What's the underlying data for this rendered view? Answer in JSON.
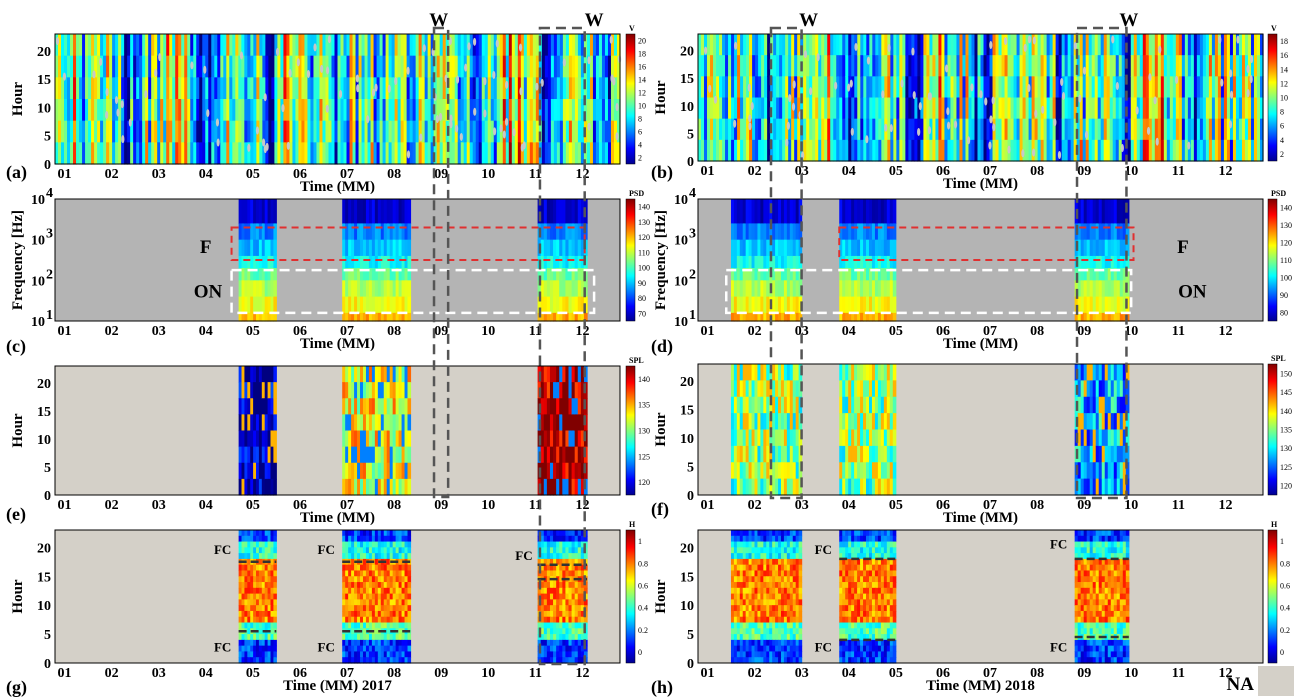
{
  "chart_data": [
    {
      "panel": "(a)",
      "type": "heatmap",
      "ylabel": "Hour",
      "xlabel": "Time (MM)",
      "x_ticks": [
        "01",
        "02",
        "03",
        "04",
        "05",
        "06",
        "07",
        "08",
        "09",
        "10",
        "11",
        "12"
      ],
      "y_ticks": [
        "0",
        "5",
        "10",
        "15",
        "20"
      ],
      "ylim": [
        0,
        23
      ],
      "colorbar": {
        "title": "V",
        "ticks": [
          "2",
          "4",
          "6",
          "8",
          "10",
          "12",
          "14",
          "16",
          "18",
          "20"
        ]
      },
      "coverage": [
        {
          "from": 0.0,
          "to": 12.0,
          "level": 0.45
        }
      ],
      "annotations": [
        {
          "text": "W",
          "month": 8.15
        },
        {
          "text": "W",
          "month": 11.45
        }
      ]
    },
    {
      "panel": "(b)",
      "type": "heatmap",
      "ylabel": "Hour",
      "xlabel": "Time (MM)",
      "x_ticks": [
        "01",
        "02",
        "03",
        "04",
        "05",
        "06",
        "07",
        "08",
        "09",
        "10",
        "11",
        "12"
      ],
      "y_ticks": [
        "0",
        "5",
        "10",
        "15",
        "20"
      ],
      "ylim": [
        0,
        23
      ],
      "colorbar": {
        "title": "V",
        "ticks": [
          "2",
          "4",
          "6",
          "8",
          "10",
          "12",
          "14",
          "16",
          "18"
        ]
      },
      "coverage": [
        {
          "from": 0.0,
          "to": 12.0,
          "level": 0.45
        }
      ],
      "annotations": [
        {
          "text": "W",
          "month": 2.35
        },
        {
          "text": "W",
          "month": 9.15
        }
      ]
    },
    {
      "panel": "(c)",
      "type": "heatmap",
      "ylabel": "Frequency [Hz]",
      "xlabel": "Time (MM)",
      "x_ticks": [
        "01",
        "02",
        "03",
        "04",
        "05",
        "06",
        "07",
        "08",
        "09",
        "10",
        "11",
        "12"
      ],
      "y_scale": "log",
      "y_ticks": [
        "10^1",
        "10^2",
        "10^3",
        "10^4"
      ],
      "colorbar": {
        "title": "PSD",
        "ticks": [
          "70",
          "80",
          "90",
          "100",
          "110",
          "120",
          "130",
          "140"
        ]
      },
      "coverage": [
        {
          "from": 3.9,
          "to": 4.7
        },
        {
          "from": 6.1,
          "to": 7.55
        },
        {
          "from": 10.25,
          "to": 11.3
        }
      ],
      "annotations": [
        {
          "text": "F"
        },
        {
          "text": "ON"
        }
      ]
    },
    {
      "panel": "(d)",
      "type": "heatmap",
      "ylabel": "Frequency [Hz]",
      "xlabel": "Time (MM)",
      "x_ticks": [
        "01",
        "02",
        "03",
        "04",
        "05",
        "06",
        "07",
        "08",
        "09",
        "10",
        "11",
        "12"
      ],
      "y_scale": "log",
      "y_ticks": [
        "10^1",
        "10^2",
        "10^3",
        "10^4"
      ],
      "colorbar": {
        "title": "PSD",
        "ticks": [
          "80",
          "90",
          "100",
          "110",
          "120",
          "130",
          "140"
        ]
      },
      "coverage": [
        {
          "from": 0.7,
          "to": 2.2
        },
        {
          "from": 3.0,
          "to": 4.2
        },
        {
          "from": 8.0,
          "to": 9.15
        }
      ],
      "annotations": [
        {
          "text": "F"
        },
        {
          "text": "ON"
        }
      ]
    },
    {
      "panel": "(e)",
      "type": "heatmap",
      "ylabel": "Hour",
      "xlabel": "Time (MM)",
      "x_ticks": [
        "01",
        "02",
        "03",
        "04",
        "05",
        "06",
        "07",
        "08",
        "09",
        "10",
        "11",
        "12"
      ],
      "y_ticks": [
        "0",
        "5",
        "10",
        "15",
        "20"
      ],
      "ylim": [
        0,
        23
      ],
      "colorbar": {
        "title": "SPL",
        "ticks": [
          "120",
          "125",
          "130",
          "135",
          "140"
        ]
      },
      "coverage": [
        {
          "from": 3.9,
          "to": 4.7,
          "level": 0.03
        },
        {
          "from": 6.1,
          "to": 7.55,
          "level": 0.62
        },
        {
          "from": 10.25,
          "to": 11.3,
          "level": 0.97
        }
      ]
    },
    {
      "panel": "(f)",
      "type": "heatmap",
      "ylabel": "Hour",
      "xlabel": "Time (MM)",
      "x_ticks": [
        "01",
        "02",
        "03",
        "04",
        "05",
        "06",
        "07",
        "08",
        "09",
        "10",
        "11",
        "12"
      ],
      "y_ticks": [
        "0",
        "5",
        "10",
        "15",
        "20"
      ],
      "ylim": [
        0,
        23
      ],
      "colorbar": {
        "title": "SPL",
        "ticks": [
          "120",
          "125",
          "130",
          "135",
          "140",
          "145",
          "150"
        ]
      },
      "coverage": [
        {
          "from": 0.7,
          "to": 2.2,
          "level": 0.5
        },
        {
          "from": 3.0,
          "to": 4.2,
          "level": 0.5
        },
        {
          "from": 8.0,
          "to": 9.15,
          "level": 0.3
        }
      ]
    },
    {
      "panel": "(g)",
      "type": "heatmap",
      "ylabel": "Hour",
      "xlabel": "Time (MM) 2017",
      "x_ticks": [
        "01",
        "02",
        "03",
        "04",
        "05",
        "06",
        "07",
        "08",
        "09",
        "10",
        "11",
        "12"
      ],
      "y_ticks": [
        "0",
        "5",
        "10",
        "15",
        "20"
      ],
      "ylim": [
        0,
        23
      ],
      "colorbar": {
        "title": "H",
        "ticks": [
          "0",
          "0.2",
          "0.4",
          "0.6",
          "0.8",
          "1"
        ]
      },
      "coverage": [
        {
          "from": 3.9,
          "to": 4.7
        },
        {
          "from": 6.1,
          "to": 7.55
        },
        {
          "from": 10.25,
          "to": 11.3
        }
      ],
      "annotations": [
        {
          "text": "FC"
        },
        {
          "text": "FC"
        },
        {
          "text": "FC"
        },
        {
          "text": "FC"
        },
        {
          "text": "FC"
        }
      ]
    },
    {
      "panel": "(h)",
      "type": "heatmap",
      "ylabel": "Hour",
      "xlabel": "Time (MM) 2018",
      "x_ticks": [
        "01",
        "02",
        "03",
        "04",
        "05",
        "06",
        "07",
        "08",
        "09",
        "10",
        "11",
        "12"
      ],
      "y_ticks": [
        "0",
        "5",
        "10",
        "15",
        "20"
      ],
      "ylim": [
        0,
        23
      ],
      "colorbar": {
        "title": "H",
        "ticks": [
          "0",
          "0.2",
          "0.4",
          "0.6",
          "0.8",
          "1"
        ]
      },
      "coverage": [
        {
          "from": 0.7,
          "to": 2.2
        },
        {
          "from": 3.0,
          "to": 4.2
        },
        {
          "from": 8.0,
          "to": 9.15
        }
      ],
      "annotations": [
        {
          "text": "FC"
        },
        {
          "text": "FC"
        },
        {
          "text": "FC"
        },
        {
          "text": "FC"
        }
      ],
      "legend": {
        "label": "NA",
        "color": "#d4d0c8"
      }
    }
  ],
  "colors": {
    "na_fill": "#d4d0c8",
    "psd_background": "#b4b4b4",
    "red_box": "#e03030",
    "white_box": "#ffffff",
    "w_box": "#555555"
  }
}
